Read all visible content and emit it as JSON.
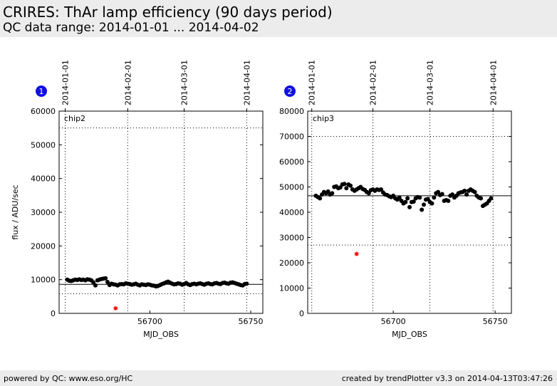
{
  "header": {
    "title": "CRIRES: ThAr lamp efficiency (90 days period)",
    "subtitle": "QC data range: 2014-01-01 ... 2014-04-02"
  },
  "footer": {
    "left": "powered by QC: www.eso.org/HC",
    "right": "created by trendPlotter v3.3 on 2014-04-13T03:47:26"
  },
  "colors": {
    "badge": "#1010e0",
    "outlier": "#ff0000",
    "points": "#000000",
    "header_bg": "#ececec"
  },
  "chart_data": [
    {
      "type": "scatter",
      "badge": "1",
      "panel_label": "chip2",
      "xlabel": "MJD_OBS",
      "ylabel": "flux / ADU/sec",
      "xlim": [
        56655,
        56756
      ],
      "ylim": [
        0,
        60000
      ],
      "xticks": [
        56700,
        56750
      ],
      "yticks": [
        0,
        10000,
        20000,
        30000,
        40000,
        50000,
        60000
      ],
      "date_ticks": [
        {
          "mjd": 56658,
          "label": "2014-01-01"
        },
        {
          "mjd": 56689,
          "label": "2014-02-01"
        },
        {
          "mjd": 56717,
          "label": "2014-03-01"
        },
        {
          "mjd": 56748,
          "label": "2014-04-01"
        }
      ],
      "hlines": [
        {
          "y": 8600,
          "style": "solid"
        },
        {
          "y": 55000,
          "style": "dotted"
        },
        {
          "y": 5800,
          "style": "dotted"
        }
      ],
      "outliers": [
        {
          "x": 56683,
          "y": 1500
        }
      ],
      "points": [
        [
          56659,
          10000
        ],
        [
          56660,
          9700
        ],
        [
          56661,
          9600
        ],
        [
          56662,
          9800
        ],
        [
          56663,
          10000
        ],
        [
          56664,
          9900
        ],
        [
          56665,
          10100
        ],
        [
          56666,
          9900
        ],
        [
          56667,
          10000
        ],
        [
          56668,
          9800
        ],
        [
          56669,
          10100
        ],
        [
          56670,
          10000
        ],
        [
          56671,
          9800
        ],
        [
          56672,
          9200
        ],
        [
          56673,
          8300
        ],
        [
          56674,
          9800
        ],
        [
          56675,
          10000
        ],
        [
          56676,
          10200
        ],
        [
          56677,
          10300
        ],
        [
          56678,
          10400
        ],
        [
          56679,
          9300
        ],
        [
          56680,
          8400
        ],
        [
          56681,
          8800
        ],
        [
          56682,
          8600
        ],
        [
          56683,
          8500
        ],
        [
          56684,
          8300
        ],
        [
          56685,
          8600
        ],
        [
          56686,
          8700
        ],
        [
          56687,
          8600
        ],
        [
          56688,
          8900
        ],
        [
          56689,
          8800
        ],
        [
          56690,
          8700
        ],
        [
          56691,
          8500
        ],
        [
          56692,
          8600
        ],
        [
          56693,
          8800
        ],
        [
          56694,
          8500
        ],
        [
          56695,
          8300
        ],
        [
          56696,
          8600
        ],
        [
          56697,
          8500
        ],
        [
          56698,
          8400
        ],
        [
          56699,
          8600
        ],
        [
          56700,
          8500
        ],
        [
          56701,
          8300
        ],
        [
          56702,
          8200
        ],
        [
          56703,
          8000
        ],
        [
          56704,
          8100
        ],
        [
          56705,
          8400
        ],
        [
          56706,
          8700
        ],
        [
          56707,
          8900
        ],
        [
          56708,
          9200
        ],
        [
          56709,
          9400
        ],
        [
          56710,
          9100
        ],
        [
          56711,
          8800
        ],
        [
          56712,
          8600
        ],
        [
          56713,
          8700
        ],
        [
          56714,
          8900
        ],
        [
          56715,
          8800
        ],
        [
          56716,
          8500
        ],
        [
          56717,
          8700
        ],
        [
          56718,
          9000
        ],
        [
          56719,
          8600
        ],
        [
          56720,
          8400
        ],
        [
          56721,
          8700
        ],
        [
          56722,
          8800
        ],
        [
          56723,
          8600
        ],
        [
          56724,
          8800
        ],
        [
          56725,
          8900
        ],
        [
          56726,
          8700
        ],
        [
          56727,
          8500
        ],
        [
          56728,
          8800
        ],
        [
          56729,
          8900
        ],
        [
          56730,
          8700
        ],
        [
          56731,
          8600
        ],
        [
          56732,
          8900
        ],
        [
          56733,
          9000
        ],
        [
          56734,
          8800
        ],
        [
          56735,
          8700
        ],
        [
          56736,
          9000
        ],
        [
          56737,
          9100
        ],
        [
          56738,
          8900
        ],
        [
          56739,
          8800
        ],
        [
          56740,
          9100
        ],
        [
          56741,
          9200
        ],
        [
          56742,
          9000
        ],
        [
          56743,
          8800
        ],
        [
          56744,
          8600
        ],
        [
          56745,
          8400
        ],
        [
          56746,
          8300
        ],
        [
          56747,
          8700
        ],
        [
          56748,
          8800
        ]
      ]
    },
    {
      "type": "scatter",
      "badge": "2",
      "panel_label": "chip3",
      "xlabel": "MJD_OBS",
      "ylabel": "",
      "xlim": [
        56658,
        56758
      ],
      "ylim": [
        0,
        80000
      ],
      "xticks": [
        56700,
        56750
      ],
      "yticks": [
        0,
        10000,
        20000,
        30000,
        40000,
        50000,
        60000,
        70000,
        80000
      ],
      "date_ticks": [
        {
          "mjd": 56660,
          "label": "2014-01-01"
        },
        {
          "mjd": 56690,
          "label": "2014-02-01"
        },
        {
          "mjd": 56718,
          "label": "2014-03-01"
        },
        {
          "mjd": 56749,
          "label": "2014-04-01"
        }
      ],
      "hlines": [
        {
          "y": 46500,
          "style": "solid"
        },
        {
          "y": 70000,
          "style": "dotted"
        },
        {
          "y": 27000,
          "style": "dotted"
        }
      ],
      "outliers": [
        {
          "x": 56682,
          "y": 23500
        }
      ],
      "points": [
        [
          56662,
          46500
        ],
        [
          56663,
          46000
        ],
        [
          56664,
          45500
        ],
        [
          56665,
          47000
        ],
        [
          56666,
          48000
        ],
        [
          56667,
          47500
        ],
        [
          56668,
          48200
        ],
        [
          56669,
          47000
        ],
        [
          56670,
          47500
        ],
        [
          56671,
          50000
        ],
        [
          56672,
          50200
        ],
        [
          56673,
          49500
        ],
        [
          56674,
          49800
        ],
        [
          56675,
          51000
        ],
        [
          56676,
          51200
        ],
        [
          56677,
          49500
        ],
        [
          56678,
          51000
        ],
        [
          56679,
          50500
        ],
        [
          56680,
          49000
        ],
        [
          56681,
          48500
        ],
        [
          56682,
          49000
        ],
        [
          56683,
          49500
        ],
        [
          56684,
          50000
        ],
        [
          56685,
          49200
        ],
        [
          56686,
          48800
        ],
        [
          56687,
          48000
        ],
        [
          56688,
          47500
        ],
        [
          56689,
          48700
        ],
        [
          56690,
          49000
        ],
        [
          56691,
          48500
        ],
        [
          56692,
          49000
        ],
        [
          56693,
          48800
        ],
        [
          56694,
          49000
        ],
        [
          56695,
          47800
        ],
        [
          56696,
          47000
        ],
        [
          56697,
          46800
        ],
        [
          56698,
          46300
        ],
        [
          56699,
          46000
        ],
        [
          56700,
          46500
        ],
        [
          56701,
          45500
        ],
        [
          56702,
          45000
        ],
        [
          56703,
          45800
        ],
        [
          56704,
          44500
        ],
        [
          56705,
          43500
        ],
        [
          56706,
          44000
        ],
        [
          56707,
          45500
        ],
        [
          56708,
          42000
        ],
        [
          56709,
          44000
        ],
        [
          56710,
          44200
        ],
        [
          56711,
          45500
        ],
        [
          56712,
          46000
        ],
        [
          56713,
          45800
        ],
        [
          56714,
          41000
        ],
        [
          56715,
          43000
        ],
        [
          56716,
          45000
        ],
        [
          56717,
          45200
        ],
        [
          56718,
          44000
        ],
        [
          56719,
          43500
        ],
        [
          56720,
          45800
        ],
        [
          56721,
          47500
        ],
        [
          56722,
          48000
        ],
        [
          56723,
          46800
        ],
        [
          56724,
          47200
        ],
        [
          56725,
          44500
        ],
        [
          56726,
          44800
        ],
        [
          56727,
          44500
        ],
        [
          56728,
          46500
        ],
        [
          56729,
          47000
        ],
        [
          56730,
          45800
        ],
        [
          56731,
          46500
        ],
        [
          56732,
          47500
        ],
        [
          56733,
          47800
        ],
        [
          56734,
          48000
        ],
        [
          56735,
          48500
        ],
        [
          56736,
          47000
        ],
        [
          56737,
          48500
        ],
        [
          56738,
          49000
        ],
        [
          56739,
          48500
        ],
        [
          56740,
          48000
        ],
        [
          56741,
          46500
        ],
        [
          56742,
          45800
        ],
        [
          56743,
          45500
        ],
        [
          56744,
          42500
        ],
        [
          56745,
          43000
        ],
        [
          56746,
          43500
        ],
        [
          56747,
          44500
        ],
        [
          56748,
          45500
        ]
      ]
    }
  ]
}
